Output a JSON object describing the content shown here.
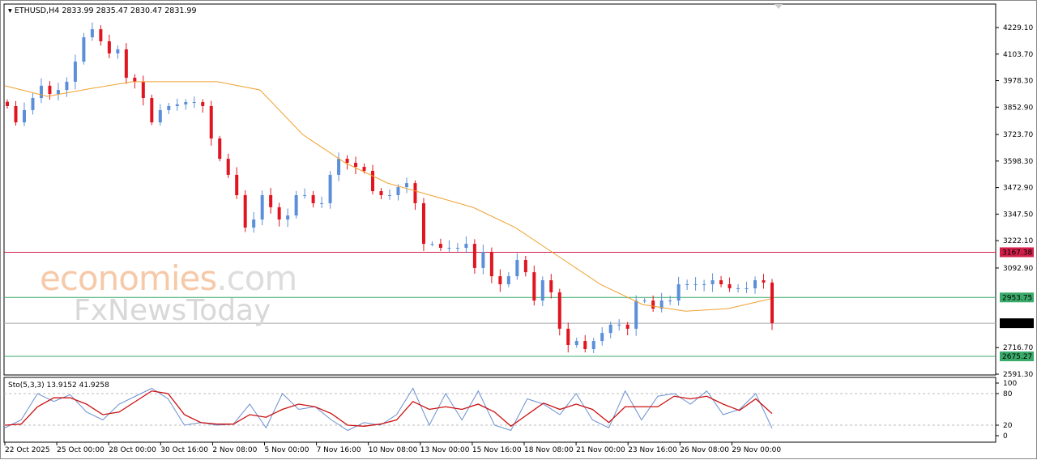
{
  "header": {
    "symbol": "ETHUSD,H4",
    "ohlc": "2833.99 2835.47 2830.47 2831.99"
  },
  "watermark": {
    "brand1": "economies",
    "brand1_suffix": ".com",
    "brand2": "FxNewsToday"
  },
  "colors": {
    "bull": "#5b8fd9",
    "bear": "#e0151f",
    "ma": "#f0a030",
    "resistance": "#d0204a",
    "support": "#3aaa6a",
    "price": "#000000",
    "stoch_k": "#6b8fd0",
    "stoch_d": "#cc1010"
  },
  "chart_data": [
    {
      "type": "candlestick",
      "title": "ETHUSD,H4",
      "ylim": [
        2591.3,
        4229.1
      ],
      "y_ticks": [
        "4229.10",
        "4103.70",
        "3978.30",
        "3852.90",
        "3723.70",
        "3598.30",
        "3472.90",
        "3347.50",
        "3222.10",
        "3092.90",
        "2716.70",
        "2591.30"
      ],
      "x_ticks": [
        "22 Oct 2025",
        "25 Oct 00:00",
        "28 Oct 00:00",
        "30 Oct 16:00",
        "2 Nov 08:00",
        "5 Nov 00:00",
        "7 Nov 16:00",
        "10 Nov 08:00",
        "13 Nov 00:00",
        "15 Nov 16:00",
        "18 Nov 08:00",
        "21 Nov 00:00",
        "23 Nov 16:00",
        "26 Nov 08:00",
        "29 Nov 00:00"
      ],
      "closes": [
        3858,
        3781,
        3839,
        3896,
        3954,
        3915,
        3934,
        3973,
        4068,
        4183,
        4221,
        4164,
        4107,
        4126,
        3992,
        3973,
        3896,
        3781,
        3839,
        3858,
        3866,
        3877,
        3877,
        3858,
        3705,
        3609,
        3533,
        3437,
        3284,
        3322,
        3437,
        3380,
        3322,
        3341,
        3437,
        3437,
        3399,
        3399,
        3533,
        3609,
        3590,
        3571,
        3552,
        3456,
        3437,
        3437,
        3475,
        3494,
        3399,
        3207,
        3207,
        3188,
        3188,
        3188,
        3207,
        3093,
        3169,
        3054,
        3016,
        3054,
        3131,
        3073,
        2939,
        3035,
        2978,
        2806,
        2729,
        2748,
        2710,
        2748,
        2786,
        2825,
        2825,
        2806,
        2939,
        2939,
        2901,
        2939,
        2939,
        3016,
        3016,
        3016,
        3016,
        3035,
        3016,
        2997,
        2997,
        2997,
        3035,
        3024,
        2831.99
      ],
      "moving_average": [
        3954,
        3904,
        3940,
        3973,
        3973,
        3973,
        3934,
        3724,
        3590,
        3494,
        3437,
        3380,
        3284,
        3150,
        3016,
        2920,
        2889,
        2901,
        2947
      ],
      "levels": [
        {
          "value": 3167.38,
          "label": "3167.38",
          "kind": "resistance"
        },
        {
          "value": 2953.75,
          "label": "2953.75",
          "kind": "support"
        },
        {
          "value": 2831.99,
          "label": "2831.99",
          "kind": "price"
        },
        {
          "value": 2675.27,
          "label": "2675.27",
          "kind": "support"
        }
      ]
    },
    {
      "type": "line",
      "title": "Sto(5,3,3) 13.9152 41.9258",
      "ylim": [
        0,
        100
      ],
      "y_ticks": [
        "100",
        "80",
        "20",
        "0"
      ],
      "levels": [
        80,
        20
      ],
      "series": [
        {
          "values": [
            15,
            30,
            80,
            65,
            78,
            45,
            30,
            60,
            75,
            90,
            70,
            20,
            25,
            20,
            22,
            60,
            15,
            80,
            50,
            55,
            30,
            10,
            25,
            20,
            40,
            90,
            20,
            80,
            30,
            85,
            20,
            10,
            70,
            60,
            40,
            80,
            30,
            15,
            85,
            30,
            75,
            80,
            60,
            85,
            40,
            50,
            80,
            14
          ]
        },
        {
          "values": [
            20,
            22,
            55,
            72,
            72,
            60,
            40,
            45,
            65,
            85,
            80,
            40,
            25,
            22,
            22,
            40,
            35,
            50,
            60,
            55,
            42,
            20,
            18,
            22,
            30,
            65,
            50,
            55,
            50,
            60,
            45,
            18,
            40,
            62,
            50,
            60,
            50,
            25,
            55,
            55,
            55,
            75,
            70,
            75,
            60,
            48,
            70,
            42
          ]
        }
      ]
    }
  ]
}
